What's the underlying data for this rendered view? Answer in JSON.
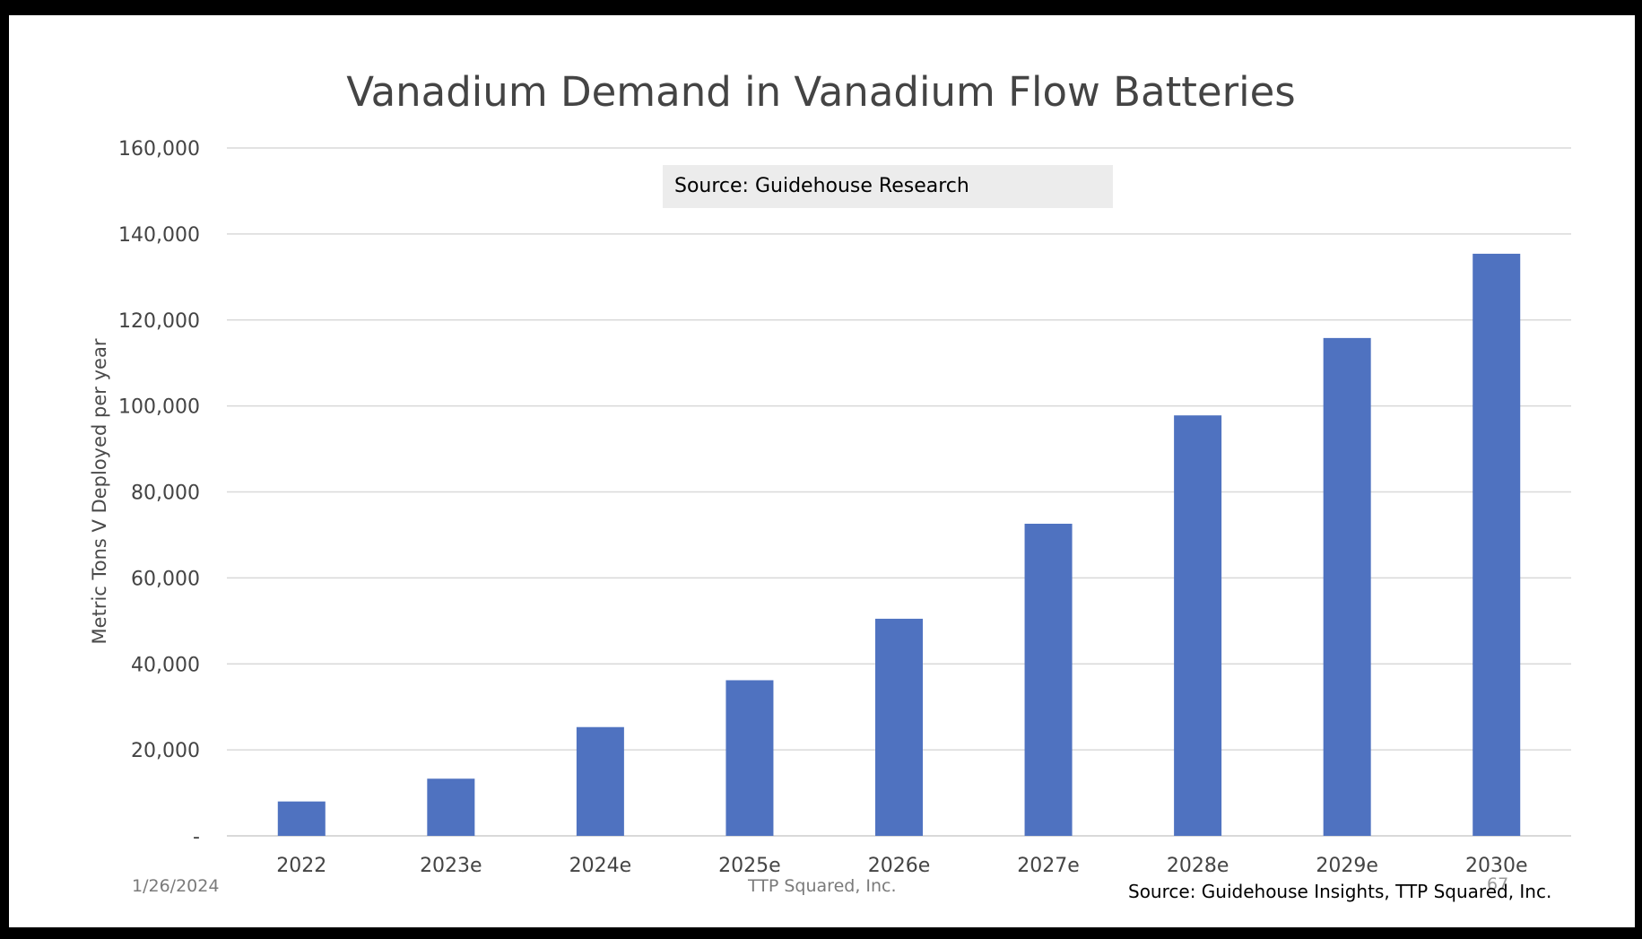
{
  "slide": {
    "date": "1/26/2024",
    "company": "TTP Squared, Inc.",
    "page_number": "67",
    "footer_source": "Source:  Guidehouse Insights, TTP Squared, Inc."
  },
  "colors": {
    "bar": "#4f72c0",
    "grid": "#d9d9d9",
    "text": "#444444"
  },
  "chart_data": {
    "type": "bar",
    "title": "Vanadium Demand in Vanadium Flow Batteries",
    "ylabel": "Metric Tons V Deployed per year",
    "xlabel": "",
    "annotation": "Source:  Guidehouse Research",
    "categories": [
      "2022",
      "2023e",
      "2024e",
      "2025e",
      "2026e",
      "2027e",
      "2028e",
      "2029e",
      "2030e"
    ],
    "values": [
      8000,
      13300,
      25300,
      36200,
      50500,
      72600,
      97800,
      115800,
      135400
    ],
    "ylim": [
      0,
      160000
    ],
    "yticks": [
      {
        "value": 0,
        "label": "-"
      },
      {
        "value": 20000,
        "label": "20,000"
      },
      {
        "value": 40000,
        "label": "40,000"
      },
      {
        "value": 60000,
        "label": "60,000"
      },
      {
        "value": 80000,
        "label": "80,000"
      },
      {
        "value": 100000,
        "label": "100,000"
      },
      {
        "value": 120000,
        "label": "120,000"
      },
      {
        "value": 140000,
        "label": "140,000"
      },
      {
        "value": 160000,
        "label": "160,000"
      }
    ],
    "grid": true,
    "legend": "none"
  }
}
